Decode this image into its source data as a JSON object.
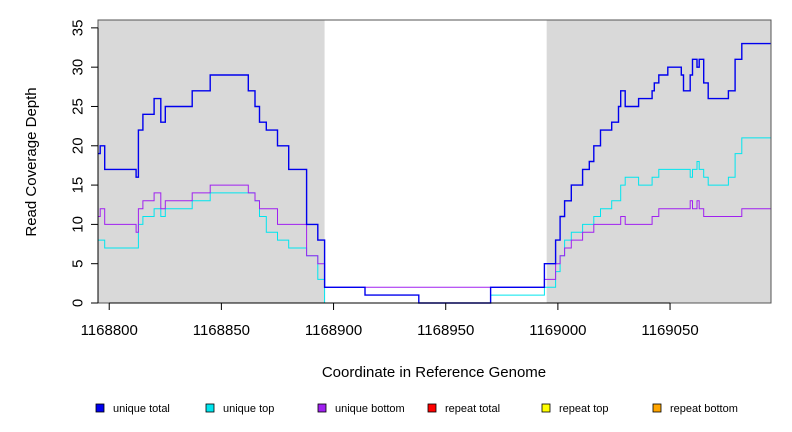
{
  "chart_data": {
    "type": "line",
    "xlabel": "Coordinate in Reference Genome",
    "ylabel": "Read Coverage Depth",
    "xlim": [
      1168795,
      1169095
    ],
    "ylim": [
      0,
      36
    ],
    "x_ticks": [
      1168800,
      1168850,
      1168900,
      1168950,
      1169000,
      1169050
    ],
    "y_ticks": [
      0,
      5,
      10,
      15,
      20,
      25,
      30,
      35
    ],
    "grid": false,
    "legend_position": "bottom",
    "shaded_regions": [
      {
        "x0": 1168795,
        "x1": 1168896,
        "color": "#d9d9d9"
      },
      {
        "x0": 1168995,
        "x1": 1169095,
        "color": "#d9d9d9"
      }
    ],
    "series": [
      {
        "name": "unique total",
        "color": "#0000ee",
        "step": true,
        "points": [
          [
            1168795,
            19
          ],
          [
            1168796,
            20
          ],
          [
            1168798,
            17
          ],
          [
            1168812,
            16
          ],
          [
            1168813,
            22
          ],
          [
            1168815,
            24
          ],
          [
            1168820,
            26
          ],
          [
            1168823,
            23
          ],
          [
            1168825,
            25
          ],
          [
            1168837,
            27
          ],
          [
            1168845,
            29
          ],
          [
            1168862,
            27
          ],
          [
            1168865,
            25
          ],
          [
            1168867,
            23
          ],
          [
            1168870,
            22
          ],
          [
            1168875,
            20
          ],
          [
            1168880,
            17
          ],
          [
            1168888,
            10
          ],
          [
            1168893,
            8
          ],
          [
            1168896,
            2
          ],
          [
            1168914,
            1
          ],
          [
            1168938,
            0
          ],
          [
            1168970,
            2
          ],
          [
            1168994,
            5
          ],
          [
            1168999,
            8
          ],
          [
            1169001,
            11
          ],
          [
            1169003,
            13
          ],
          [
            1169006,
            15
          ],
          [
            1169011,
            17
          ],
          [
            1169014,
            18
          ],
          [
            1169016,
            20
          ],
          [
            1169019,
            22
          ],
          [
            1169024,
            23
          ],
          [
            1169027,
            25
          ],
          [
            1169028,
            27
          ],
          [
            1169030,
            25
          ],
          [
            1169036,
            26
          ],
          [
            1169042,
            27
          ],
          [
            1169043,
            28
          ],
          [
            1169045,
            29
          ],
          [
            1169049,
            30
          ],
          [
            1169055,
            29
          ],
          [
            1169056,
            27
          ],
          [
            1169059,
            29
          ],
          [
            1169060,
            31
          ],
          [
            1169062,
            30
          ],
          [
            1169063,
            31
          ],
          [
            1169065,
            28
          ],
          [
            1169067,
            26
          ],
          [
            1169076,
            27
          ],
          [
            1169079,
            31
          ],
          [
            1169082,
            33
          ],
          [
            1169095,
            33
          ]
        ]
      },
      {
        "name": "unique top",
        "color": "#00e5ee",
        "step": true,
        "points": [
          [
            1168795,
            8
          ],
          [
            1168798,
            7
          ],
          [
            1168813,
            10
          ],
          [
            1168815,
            11
          ],
          [
            1168820,
            12
          ],
          [
            1168823,
            11
          ],
          [
            1168825,
            12
          ],
          [
            1168837,
            13
          ],
          [
            1168845,
            14
          ],
          [
            1168865,
            13
          ],
          [
            1168867,
            11
          ],
          [
            1168870,
            9
          ],
          [
            1168875,
            8
          ],
          [
            1168880,
            7
          ],
          [
            1168888,
            6
          ],
          [
            1168893,
            3
          ],
          [
            1168896,
            0
          ],
          [
            1168970,
            1
          ],
          [
            1168994,
            2
          ],
          [
            1168999,
            4
          ],
          [
            1169001,
            6
          ],
          [
            1169003,
            8
          ],
          [
            1169006,
            9
          ],
          [
            1169011,
            10
          ],
          [
            1169016,
            11
          ],
          [
            1169019,
            12
          ],
          [
            1169024,
            13
          ],
          [
            1169028,
            15
          ],
          [
            1169030,
            16
          ],
          [
            1169036,
            15
          ],
          [
            1169042,
            16
          ],
          [
            1169045,
            17
          ],
          [
            1169059,
            16
          ],
          [
            1169060,
            17
          ],
          [
            1169062,
            18
          ],
          [
            1169063,
            17
          ],
          [
            1169065,
            16
          ],
          [
            1169067,
            15
          ],
          [
            1169076,
            16
          ],
          [
            1169079,
            19
          ],
          [
            1169082,
            21
          ],
          [
            1169095,
            21
          ]
        ]
      },
      {
        "name": "unique bottom",
        "color": "#a020f0",
        "step": true,
        "points": [
          [
            1168795,
            11
          ],
          [
            1168796,
            12
          ],
          [
            1168798,
            10
          ],
          [
            1168812,
            9
          ],
          [
            1168813,
            12
          ],
          [
            1168815,
            13
          ],
          [
            1168820,
            14
          ],
          [
            1168823,
            12
          ],
          [
            1168825,
            13
          ],
          [
            1168837,
            14
          ],
          [
            1168845,
            15
          ],
          [
            1168862,
            14
          ],
          [
            1168865,
            13
          ],
          [
            1168867,
            12
          ],
          [
            1168875,
            10
          ],
          [
            1168888,
            6
          ],
          [
            1168893,
            5
          ],
          [
            1168896,
            2
          ],
          [
            1168994,
            3
          ],
          [
            1168999,
            5
          ],
          [
            1169001,
            6
          ],
          [
            1169003,
            7
          ],
          [
            1169006,
            8
          ],
          [
            1169011,
            9
          ],
          [
            1169016,
            10
          ],
          [
            1169028,
            11
          ],
          [
            1169030,
            10
          ],
          [
            1169042,
            11
          ],
          [
            1169045,
            12
          ],
          [
            1169059,
            13
          ],
          [
            1169060,
            12
          ],
          [
            1169062,
            13
          ],
          [
            1169063,
            12
          ],
          [
            1169065,
            11
          ],
          [
            1169082,
            12
          ],
          [
            1169095,
            12
          ]
        ]
      },
      {
        "name": "repeat total",
        "color": "#ff0000",
        "step": true,
        "points": [
          [
            1168795,
            0
          ],
          [
            1169095,
            0
          ]
        ]
      },
      {
        "name": "repeat top",
        "color": "#ffff00",
        "step": true,
        "points": [
          [
            1168795,
            0
          ],
          [
            1169095,
            0
          ]
        ]
      },
      {
        "name": "repeat bottom",
        "color": "#ffa500",
        "step": true,
        "points": [
          [
            1168795,
            0
          ],
          [
            1169095,
            0
          ]
        ]
      }
    ]
  }
}
